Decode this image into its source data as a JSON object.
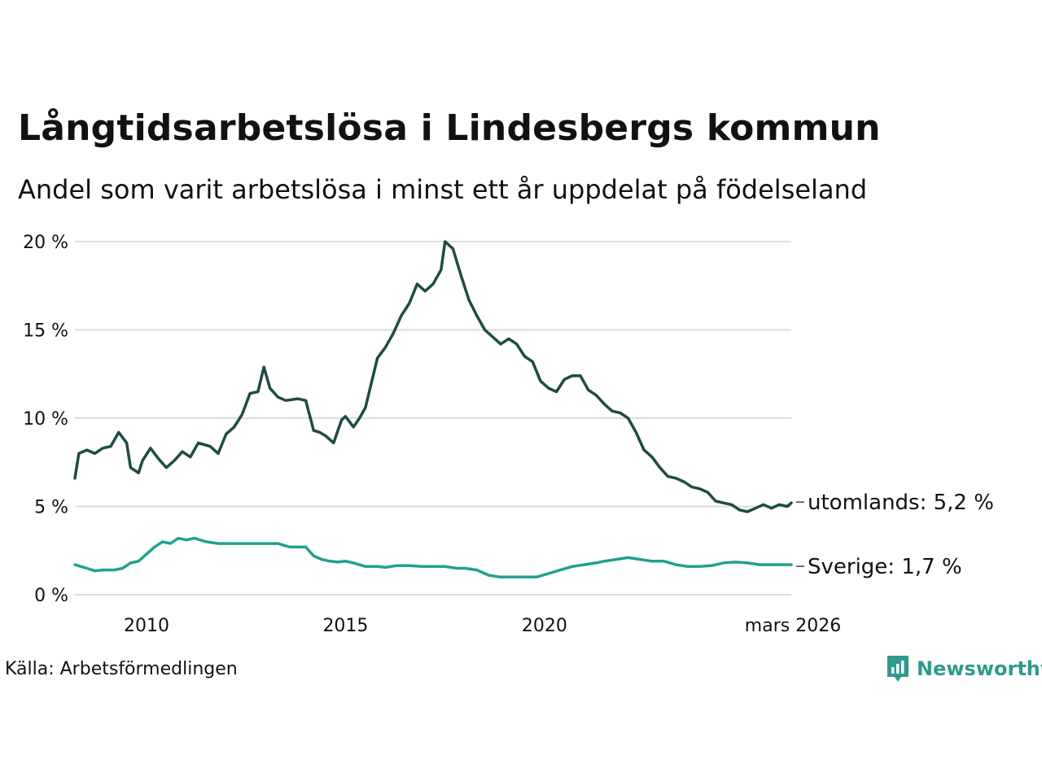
{
  "header": {
    "title": "Långtidsarbetslösa i Lindesbergs kommun",
    "subtitle": "Andel som varit arbetslösa i minst ett år uppdelat på födelseland"
  },
  "footer": {
    "source": "Källa: Arbetsförmedlingen",
    "brand": "Newsworthy"
  },
  "colors": {
    "utomlands": "#1f4b44",
    "sverige": "#22a090",
    "grid": "#dddddd",
    "brand": "#2e9a8d"
  },
  "chart_data": {
    "type": "line",
    "title": "Långtidsarbetslösa i Lindesbergs kommun",
    "xlabel": "",
    "ylabel": "",
    "x_range": [
      2008.2,
      2026.2
    ],
    "ylim": [
      0,
      20
    ],
    "y_ticks": [
      0,
      5,
      10,
      15,
      20
    ],
    "y_tick_labels": [
      "0 %",
      "5 %",
      "10 %",
      "15 %",
      "20 %"
    ],
    "x_ticks": [
      2010,
      2015,
      2020,
      2026.2
    ],
    "x_tick_labels": [
      "2010",
      "2015",
      "2020",
      "mars 2026"
    ],
    "grid": true,
    "series": [
      {
        "name": "utomlands",
        "end_label": "utomlands: 5,2 %",
        "x": [
          2008.2,
          2008.3,
          2008.5,
          2008.7,
          2008.9,
          2009.1,
          2009.3,
          2009.5,
          2009.6,
          2009.8,
          2009.9,
          2010.1,
          2010.3,
          2010.5,
          2010.7,
          2010.9,
          2011.1,
          2011.3,
          2011.6,
          2011.8,
          2012.0,
          2012.2,
          2012.4,
          2012.6,
          2012.8,
          2012.95,
          2013.1,
          2013.3,
          2013.5,
          2013.8,
          2014.0,
          2014.2,
          2014.35,
          2014.5,
          2014.7,
          2014.9,
          2015.0,
          2015.2,
          2015.35,
          2015.5,
          2015.8,
          2016.0,
          2016.2,
          2016.4,
          2016.6,
          2016.8,
          2017.0,
          2017.2,
          2017.4,
          2017.5,
          2017.7,
          2017.9,
          2018.1,
          2018.3,
          2018.5,
          2018.7,
          2018.9,
          2019.1,
          2019.3,
          2019.5,
          2019.7,
          2019.9,
          2020.1,
          2020.3,
          2020.5,
          2020.7,
          2020.9,
          2021.1,
          2021.3,
          2021.5,
          2021.7,
          2021.9,
          2022.1,
          2022.3,
          2022.5,
          2022.7,
          2022.9,
          2023.1,
          2023.3,
          2023.5,
          2023.7,
          2023.9,
          2024.1,
          2024.3,
          2024.5,
          2024.7,
          2024.9,
          2025.1,
          2025.3,
          2025.5,
          2025.7,
          2025.9,
          2026.1,
          2026.2
        ],
        "values": [
          6.6,
          8.0,
          8.2,
          8.0,
          8.3,
          8.4,
          9.2,
          8.6,
          7.2,
          6.9,
          7.6,
          8.3,
          7.7,
          7.2,
          7.6,
          8.1,
          7.8,
          8.6,
          8.4,
          8.0,
          9.1,
          9.5,
          10.2,
          11.4,
          11.5,
          12.9,
          11.7,
          11.2,
          11.0,
          11.1,
          11.0,
          9.3,
          9.2,
          9.0,
          8.6,
          9.9,
          10.1,
          9.5,
          10.0,
          10.6,
          13.4,
          14.0,
          14.8,
          15.8,
          16.5,
          17.6,
          17.2,
          17.6,
          18.4,
          20.0,
          19.6,
          18.1,
          16.7,
          15.8,
          15.0,
          14.6,
          14.2,
          14.5,
          14.2,
          13.5,
          13.2,
          12.1,
          11.7,
          11.5,
          12.2,
          12.4,
          12.4,
          11.6,
          11.3,
          10.8,
          10.4,
          10.3,
          10.0,
          9.2,
          8.2,
          7.8,
          7.2,
          6.7,
          6.6,
          6.4,
          6.1,
          6.0,
          5.8,
          5.3,
          5.2,
          5.1,
          4.8,
          4.7,
          4.9,
          5.1,
          4.9,
          5.1,
          5.0,
          5.2
        ]
      },
      {
        "name": "Sverige",
        "end_label": "Sverige: 1,7 %",
        "x": [
          2008.2,
          2008.5,
          2008.7,
          2008.9,
          2009.2,
          2009.4,
          2009.6,
          2009.8,
          2010.0,
          2010.2,
          2010.4,
          2010.6,
          2010.8,
          2011.0,
          2011.2,
          2011.5,
          2011.8,
          2012.0,
          2012.3,
          2012.6,
          2012.9,
          2013.1,
          2013.3,
          2013.6,
          2013.8,
          2014.0,
          2014.2,
          2014.4,
          2014.6,
          2014.8,
          2015.0,
          2015.2,
          2015.5,
          2015.8,
          2016.0,
          2016.3,
          2016.6,
          2016.9,
          2017.2,
          2017.5,
          2017.8,
          2018.0,
          2018.3,
          2018.6,
          2018.9,
          2019.2,
          2019.5,
          2019.8,
          2020.1,
          2020.4,
          2020.7,
          2021.0,
          2021.3,
          2021.5,
          2021.8,
          2022.1,
          2022.4,
          2022.7,
          2023.0,
          2023.3,
          2023.6,
          2023.9,
          2024.2,
          2024.5,
          2024.8,
          2025.1,
          2025.4,
          2025.7,
          2026.0,
          2026.2
        ],
        "values": [
          1.7,
          1.5,
          1.35,
          1.4,
          1.4,
          1.5,
          1.8,
          1.9,
          2.3,
          2.7,
          3.0,
          2.9,
          3.2,
          3.1,
          3.2,
          3.0,
          2.9,
          2.9,
          2.9,
          2.9,
          2.9,
          2.9,
          2.9,
          2.7,
          2.7,
          2.7,
          2.2,
          2.0,
          1.9,
          1.85,
          1.9,
          1.8,
          1.6,
          1.6,
          1.55,
          1.65,
          1.65,
          1.6,
          1.6,
          1.6,
          1.5,
          1.5,
          1.4,
          1.1,
          1.0,
          1.0,
          1.0,
          1.0,
          1.2,
          1.4,
          1.6,
          1.7,
          1.8,
          1.9,
          2.0,
          2.1,
          2.0,
          1.9,
          1.9,
          1.7,
          1.6,
          1.6,
          1.65,
          1.8,
          1.85,
          1.8,
          1.7,
          1.7,
          1.7,
          1.7
        ]
      }
    ]
  }
}
